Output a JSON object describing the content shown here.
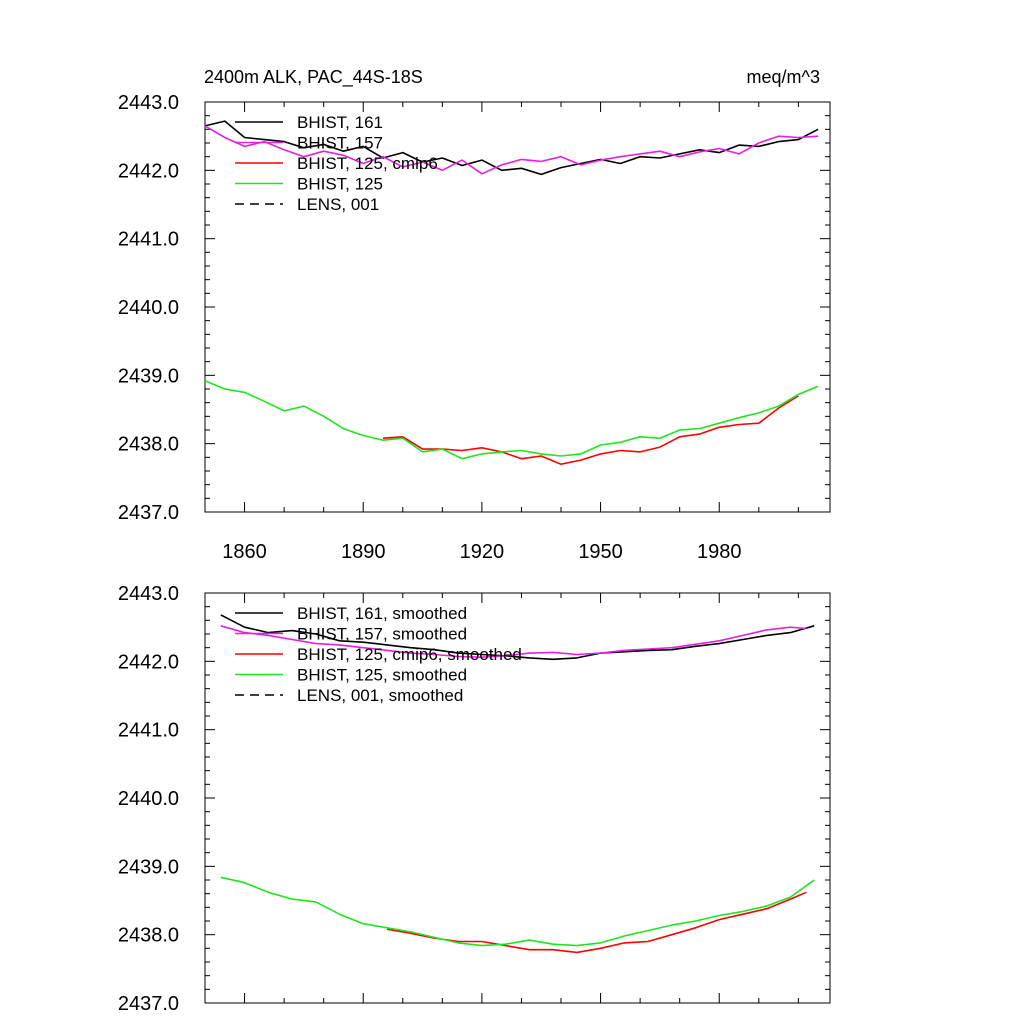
{
  "figure": {
    "title_left": "2400m ALK, PAC_44S-18S",
    "title_right": "meq/m^3"
  },
  "chart_data": [
    {
      "type": "line",
      "panel": "top",
      "title": "2400m ALK, PAC_44S-18S",
      "units": "meq/m^3",
      "xlim": [
        1850,
        2008
      ],
      "ylim": [
        2437.0,
        2443.0
      ],
      "x_ticks": [
        1860,
        1890,
        1920,
        1950,
        1980
      ],
      "x_tick_labels": [
        "1860",
        "1890",
        "1920",
        "1950",
        "1980"
      ],
      "y_ticks": [
        2437.0,
        2438.0,
        2439.0,
        2440.0,
        2441.0,
        2442.0,
        2443.0
      ],
      "y_tick_labels": [
        "2437.0",
        "2438.0",
        "2439.0",
        "2440.0",
        "2441.0",
        "2442.0",
        "2443.0"
      ],
      "grid": false,
      "legend_position": "top-left",
      "series": [
        {
          "name": "BHIST, 161",
          "color": "#000000",
          "dash": "solid",
          "x": [
            1850,
            1855,
            1860,
            1865,
            1870,
            1875,
            1880,
            1885,
            1890,
            1895,
            1900,
            1905,
            1910,
            1915,
            1920,
            1925,
            1930,
            1935,
            1940,
            1945,
            1950,
            1955,
            1960,
            1965,
            1970,
            1975,
            1980,
            1985,
            1990,
            1995,
            2000,
            2005
          ],
          "y": [
            2442.65,
            2442.72,
            2442.48,
            2442.45,
            2442.42,
            2442.33,
            2442.38,
            2442.28,
            2442.35,
            2442.18,
            2442.26,
            2442.12,
            2442.18,
            2442.07,
            2442.15,
            2442.0,
            2442.03,
            2441.94,
            2442.04,
            2442.1,
            2442.16,
            2442.1,
            2442.2,
            2442.18,
            2442.24,
            2442.3,
            2442.26,
            2442.37,
            2442.35,
            2442.42,
            2442.45,
            2442.6
          ]
        },
        {
          "name": "BHIST, 157",
          "color": "#e51fe5",
          "dash": "solid",
          "x": [
            1850,
            1855,
            1860,
            1865,
            1870,
            1875,
            1880,
            1885,
            1890,
            1895,
            1900,
            1905,
            1910,
            1915,
            1920,
            1925,
            1930,
            1935,
            1940,
            1945,
            1950,
            1955,
            1960,
            1965,
            1970,
            1975,
            1980,
            1985,
            1990,
            1995,
            2000,
            2005
          ],
          "y": [
            2442.65,
            2442.48,
            2442.35,
            2442.42,
            2442.3,
            2442.2,
            2442.28,
            2442.22,
            2442.1,
            2442.2,
            2442.05,
            2442.12,
            2442.0,
            2442.15,
            2441.95,
            2442.08,
            2442.16,
            2442.13,
            2442.2,
            2442.08,
            2442.15,
            2442.2,
            2442.24,
            2442.28,
            2442.2,
            2442.27,
            2442.32,
            2442.24,
            2442.4,
            2442.5,
            2442.48,
            2442.5
          ]
        },
        {
          "name": "BHIST, 125, cmip6",
          "color": "#ff0000",
          "dash": "solid",
          "x": [
            1895,
            1900,
            1905,
            1910,
            1915,
            1920,
            1925,
            1930,
            1935,
            1940,
            1945,
            1950,
            1955,
            1960,
            1965,
            1970,
            1975,
            1980,
            1985,
            1990,
            1995,
            2000
          ],
          "y": [
            2438.08,
            2438.1,
            2437.92,
            2437.92,
            2437.9,
            2437.94,
            2437.88,
            2437.78,
            2437.82,
            2437.7,
            2437.76,
            2437.85,
            2437.9,
            2437.88,
            2437.95,
            2438.1,
            2438.14,
            2438.24,
            2438.28,
            2438.3,
            2438.52,
            2438.7
          ]
        },
        {
          "name": "BHIST, 125",
          "color": "#1fe51f",
          "dash": "solid",
          "x": [
            1850,
            1855,
            1860,
            1865,
            1870,
            1875,
            1880,
            1885,
            1890,
            1895,
            1900,
            1905,
            1910,
            1915,
            1920,
            1925,
            1930,
            1935,
            1940,
            1945,
            1950,
            1955,
            1960,
            1965,
            1970,
            1975,
            1980,
            1985,
            1990,
            1995,
            2000,
            2005
          ],
          "y": [
            2438.92,
            2438.8,
            2438.75,
            2438.62,
            2438.48,
            2438.55,
            2438.4,
            2438.22,
            2438.12,
            2438.05,
            2438.08,
            2437.88,
            2437.92,
            2437.78,
            2437.85,
            2437.88,
            2437.9,
            2437.85,
            2437.82,
            2437.85,
            2437.98,
            2438.02,
            2438.1,
            2438.08,
            2438.2,
            2438.22,
            2438.3,
            2438.38,
            2438.45,
            2438.55,
            2438.72,
            2438.84
          ]
        },
        {
          "name": "LENS, 001",
          "color": "#000000",
          "dash": "dashed",
          "x": [],
          "y": []
        }
      ]
    },
    {
      "type": "line",
      "panel": "bottom",
      "xlim": [
        1850,
        2008
      ],
      "ylim": [
        2437.0,
        2443.0
      ],
      "x_ticks": [
        1860,
        1890,
        1920,
        1950,
        1980
      ],
      "y_ticks": [
        2437.0,
        2438.0,
        2439.0,
        2440.0,
        2441.0,
        2442.0,
        2443.0
      ],
      "y_tick_labels": [
        "2437.0",
        "2438.0",
        "2439.0",
        "2440.0",
        "2441.0",
        "2442.0",
        "2443.0"
      ],
      "grid": false,
      "legend_position": "top-left",
      "series": [
        {
          "name": "BHIST, 161, smoothed",
          "color": "#000000",
          "dash": "solid",
          "x": [
            1854,
            1860,
            1866,
            1872,
            1878,
            1884,
            1890,
            1896,
            1902,
            1908,
            1914,
            1920,
            1926,
            1932,
            1938,
            1944,
            1950,
            1956,
            1962,
            1968,
            1974,
            1980,
            1986,
            1992,
            1998,
            2004
          ],
          "y": [
            2442.68,
            2442.5,
            2442.42,
            2442.45,
            2442.4,
            2442.3,
            2442.28,
            2442.24,
            2442.2,
            2442.17,
            2442.12,
            2442.1,
            2442.08,
            2442.05,
            2442.03,
            2442.05,
            2442.12,
            2442.14,
            2442.16,
            2442.17,
            2442.22,
            2442.26,
            2442.32,
            2442.38,
            2442.42,
            2442.52
          ]
        },
        {
          "name": "BHIST, 157, smoothed",
          "color": "#e51fe5",
          "dash": "solid",
          "x": [
            1854,
            1860,
            1866,
            1872,
            1878,
            1884,
            1890,
            1896,
            1902,
            1908,
            1914,
            1920,
            1926,
            1932,
            1938,
            1944,
            1950,
            1956,
            1962,
            1968,
            1974,
            1980,
            1986,
            1992,
            1998,
            2002
          ],
          "y": [
            2442.52,
            2442.42,
            2442.38,
            2442.32,
            2442.26,
            2442.24,
            2442.2,
            2442.16,
            2442.12,
            2442.1,
            2442.07,
            2442.06,
            2442.08,
            2442.12,
            2442.13,
            2442.1,
            2442.12,
            2442.16,
            2442.18,
            2442.2,
            2442.25,
            2442.3,
            2442.38,
            2442.46,
            2442.5,
            2442.48
          ]
        },
        {
          "name": "BHIST, 125, cmip6, smoothed",
          "color": "#ff0000",
          "dash": "solid",
          "x": [
            1896,
            1902,
            1908,
            1914,
            1920,
            1926,
            1932,
            1938,
            1944,
            1950,
            1956,
            1962,
            1968,
            1974,
            1980,
            1986,
            1992,
            1998,
            2002
          ],
          "y": [
            2438.08,
            2438.02,
            2437.95,
            2437.9,
            2437.9,
            2437.84,
            2437.78,
            2437.78,
            2437.74,
            2437.8,
            2437.88,
            2437.9,
            2438.0,
            2438.1,
            2438.22,
            2438.3,
            2438.38,
            2438.52,
            2438.62
          ]
        },
        {
          "name": "BHIST, 125, smoothed",
          "color": "#1fe51f",
          "dash": "solid",
          "x": [
            1854,
            1860,
            1866,
            1872,
            1878,
            1884,
            1890,
            1896,
            1902,
            1908,
            1914,
            1920,
            1926,
            1932,
            1938,
            1944,
            1950,
            1956,
            1962,
            1968,
            1974,
            1980,
            1986,
            1992,
            1998,
            2004
          ],
          "y": [
            2438.84,
            2438.76,
            2438.62,
            2438.52,
            2438.48,
            2438.3,
            2438.16,
            2438.1,
            2438.04,
            2437.96,
            2437.88,
            2437.84,
            2437.86,
            2437.92,
            2437.86,
            2437.84,
            2437.88,
            2437.98,
            2438.06,
            2438.14,
            2438.2,
            2438.28,
            2438.34,
            2438.42,
            2438.55,
            2438.8
          ]
        },
        {
          "name": "LENS, 001, smoothed",
          "color": "#000000",
          "dash": "dashed",
          "x": [],
          "y": []
        }
      ]
    }
  ]
}
